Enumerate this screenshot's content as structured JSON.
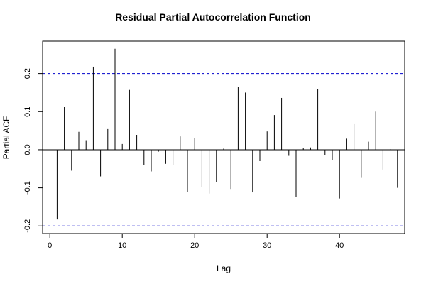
{
  "chart_data": {
    "type": "bar",
    "title": "Residual Partial Autocorrelation Function",
    "xlabel": "Lag",
    "ylabel": "Partial ACF",
    "xlim": [
      -1,
      49
    ],
    "ylim": [
      -0.22,
      0.285
    ],
    "x_ticks": [
      0,
      10,
      20,
      30,
      40
    ],
    "y_ticks": [
      -0.2,
      -0.1,
      0.0,
      0.1,
      0.2
    ],
    "y_tick_labels": [
      "-0.2",
      "-0.1",
      "0.0",
      "0.1",
      "0.2"
    ],
    "confidence_bounds": [
      0.2,
      -0.2
    ],
    "grid": false,
    "colors": {
      "spike": "#000000",
      "bound": "#0000cc",
      "zero_line": "#000000",
      "frame": "#000000"
    },
    "lags": [
      1,
      2,
      3,
      4,
      5,
      6,
      7,
      8,
      9,
      10,
      11,
      12,
      13,
      14,
      15,
      16,
      17,
      18,
      19,
      20,
      21,
      22,
      23,
      24,
      25,
      26,
      27,
      28,
      29,
      30,
      31,
      32,
      33,
      34,
      35,
      36,
      37,
      38,
      39,
      40,
      41,
      42,
      43,
      44,
      45,
      46,
      47,
      48
    ],
    "values": [
      -0.183,
      0.113,
      -0.055,
      0.047,
      0.025,
      0.218,
      -0.07,
      0.056,
      0.265,
      0.015,
      0.157,
      0.039,
      -0.04,
      -0.057,
      -0.005,
      -0.037,
      -0.04,
      0.035,
      -0.11,
      0.031,
      -0.098,
      -0.115,
      -0.085,
      0.003,
      -0.103,
      0.165,
      0.15,
      -0.112,
      -0.03,
      0.048,
      0.091,
      0.136,
      -0.016,
      -0.125,
      0.005,
      0.006,
      0.16,
      -0.015,
      -0.028,
      -0.128,
      0.029,
      0.069,
      -0.072,
      0.021,
      0.1,
      -0.052,
      0.001,
      -0.1
    ]
  }
}
